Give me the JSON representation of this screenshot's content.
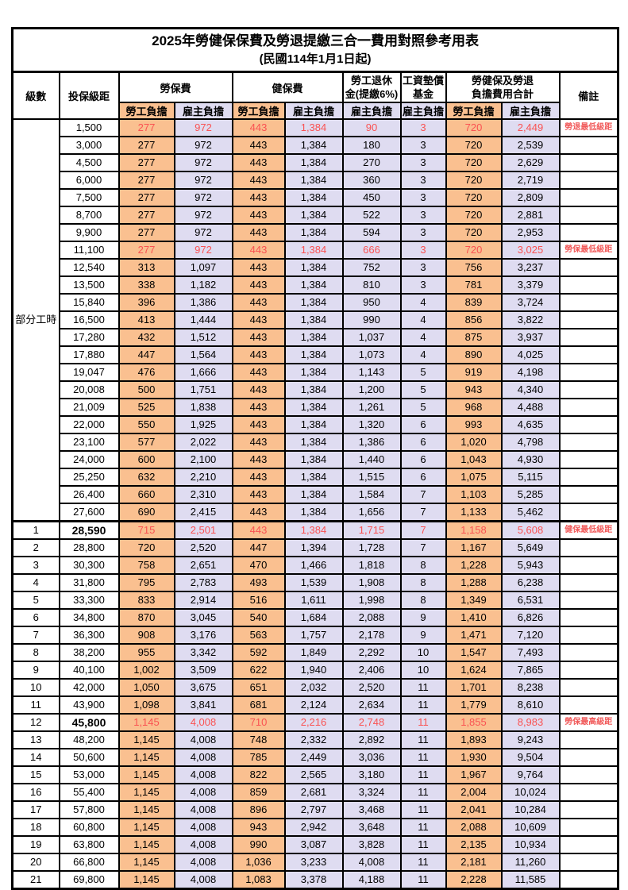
{
  "title": "2025年勞健保保費及勞退提繳三合一費用對照參考用表",
  "subtitle": "(民國114年1月1日起)",
  "header": {
    "level": "級數",
    "salary": "投保級距",
    "labor_ins": "勞保費",
    "health_ins": "健保費",
    "pension": "勞工退休\n金(提繳6%)",
    "wage_fund": "工資墊償\n基金",
    "total": "勞健保及勞退\n負擔費用合計",
    "note": "備註",
    "employee": "勞工負擔",
    "employer": "雇主負擔"
  },
  "colors": {
    "employee_bg": "#fac090",
    "employer_bg": "#dfdcf1",
    "highlight_text": "#fa5252",
    "note_text": "#f15b5b",
    "border": "#000000"
  },
  "part_time_label": "部分工時",
  "part_time_rowspan": 23,
  "rows": [
    {
      "level": "部分工時",
      "salary": "1,500",
      "cells": [
        "277",
        "972",
        "443",
        "1,384",
        "90",
        "3",
        "720",
        "2,449"
      ],
      "note": "勞退最低級距",
      "red": true,
      "bold": false,
      "section": false
    },
    {
      "level": null,
      "salary": "3,000",
      "cells": [
        "277",
        "972",
        "443",
        "1,384",
        "180",
        "3",
        "720",
        "2,539"
      ],
      "note": "",
      "red": false,
      "bold": false,
      "section": false
    },
    {
      "level": null,
      "salary": "4,500",
      "cells": [
        "277",
        "972",
        "443",
        "1,384",
        "270",
        "3",
        "720",
        "2,629"
      ],
      "note": "",
      "red": false,
      "bold": false,
      "section": false
    },
    {
      "level": null,
      "salary": "6,000",
      "cells": [
        "277",
        "972",
        "443",
        "1,384",
        "360",
        "3",
        "720",
        "2,719"
      ],
      "note": "",
      "red": false,
      "bold": false,
      "section": false
    },
    {
      "level": null,
      "salary": "7,500",
      "cells": [
        "277",
        "972",
        "443",
        "1,384",
        "450",
        "3",
        "720",
        "2,809"
      ],
      "note": "",
      "red": false,
      "bold": false,
      "section": false
    },
    {
      "level": null,
      "salary": "8,700",
      "cells": [
        "277",
        "972",
        "443",
        "1,384",
        "522",
        "3",
        "720",
        "2,881"
      ],
      "note": "",
      "red": false,
      "bold": false,
      "section": false
    },
    {
      "level": null,
      "salary": "9,900",
      "cells": [
        "277",
        "972",
        "443",
        "1,384",
        "594",
        "3",
        "720",
        "2,953"
      ],
      "note": "",
      "red": false,
      "bold": false,
      "section": false
    },
    {
      "level": null,
      "salary": "11,100",
      "cells": [
        "277",
        "972",
        "443",
        "1,384",
        "666",
        "3",
        "720",
        "3,025"
      ],
      "note": "勞保最低級距",
      "red": true,
      "bold": false,
      "section": false
    },
    {
      "level": null,
      "salary": "12,540",
      "cells": [
        "313",
        "1,097",
        "443",
        "1,384",
        "752",
        "3",
        "756",
        "3,237"
      ],
      "note": "",
      "red": false,
      "bold": false,
      "section": false
    },
    {
      "level": null,
      "salary": "13,500",
      "cells": [
        "338",
        "1,182",
        "443",
        "1,384",
        "810",
        "3",
        "781",
        "3,379"
      ],
      "note": "",
      "red": false,
      "bold": false,
      "section": false
    },
    {
      "level": null,
      "salary": "15,840",
      "cells": [
        "396",
        "1,386",
        "443",
        "1,384",
        "950",
        "4",
        "839",
        "3,724"
      ],
      "note": "",
      "red": false,
      "bold": false,
      "section": false
    },
    {
      "level": null,
      "salary": "16,500",
      "cells": [
        "413",
        "1,444",
        "443",
        "1,384",
        "990",
        "4",
        "856",
        "3,822"
      ],
      "note": "",
      "red": false,
      "bold": false,
      "section": false
    },
    {
      "level": null,
      "salary": "17,280",
      "cells": [
        "432",
        "1,512",
        "443",
        "1,384",
        "1,037",
        "4",
        "875",
        "3,937"
      ],
      "note": "",
      "red": false,
      "bold": false,
      "section": false
    },
    {
      "level": null,
      "salary": "17,880",
      "cells": [
        "447",
        "1,564",
        "443",
        "1,384",
        "1,073",
        "4",
        "890",
        "4,025"
      ],
      "note": "",
      "red": false,
      "bold": false,
      "section": false
    },
    {
      "level": null,
      "salary": "19,047",
      "cells": [
        "476",
        "1,666",
        "443",
        "1,384",
        "1,143",
        "5",
        "919",
        "4,198"
      ],
      "note": "",
      "red": false,
      "bold": false,
      "section": false
    },
    {
      "level": null,
      "salary": "20,008",
      "cells": [
        "500",
        "1,751",
        "443",
        "1,384",
        "1,200",
        "5",
        "943",
        "4,340"
      ],
      "note": "",
      "red": false,
      "bold": false,
      "section": false
    },
    {
      "level": null,
      "salary": "21,009",
      "cells": [
        "525",
        "1,838",
        "443",
        "1,384",
        "1,261",
        "5",
        "968",
        "4,488"
      ],
      "note": "",
      "red": false,
      "bold": false,
      "section": false
    },
    {
      "level": null,
      "salary": "22,000",
      "cells": [
        "550",
        "1,925",
        "443",
        "1,384",
        "1,320",
        "6",
        "993",
        "4,635"
      ],
      "note": "",
      "red": false,
      "bold": false,
      "section": false
    },
    {
      "level": null,
      "salary": "23,100",
      "cells": [
        "577",
        "2,022",
        "443",
        "1,384",
        "1,386",
        "6",
        "1,020",
        "4,798"
      ],
      "note": "",
      "red": false,
      "bold": false,
      "section": false
    },
    {
      "level": null,
      "salary": "24,000",
      "cells": [
        "600",
        "2,100",
        "443",
        "1,384",
        "1,440",
        "6",
        "1,043",
        "4,930"
      ],
      "note": "",
      "red": false,
      "bold": false,
      "section": false
    },
    {
      "level": null,
      "salary": "25,250",
      "cells": [
        "632",
        "2,210",
        "443",
        "1,384",
        "1,515",
        "6",
        "1,075",
        "5,115"
      ],
      "note": "",
      "red": false,
      "bold": false,
      "section": false
    },
    {
      "level": null,
      "salary": "26,400",
      "cells": [
        "660",
        "2,310",
        "443",
        "1,384",
        "1,584",
        "7",
        "1,103",
        "5,285"
      ],
      "note": "",
      "red": false,
      "bold": false,
      "section": false
    },
    {
      "level": null,
      "salary": "27,600",
      "cells": [
        "690",
        "2,415",
        "443",
        "1,384",
        "1,656",
        "7",
        "1,133",
        "5,462"
      ],
      "note": "",
      "red": false,
      "bold": false,
      "section": false
    },
    {
      "level": "1",
      "salary": "28,590",
      "cells": [
        "715",
        "2,501",
        "443",
        "1,384",
        "1,715",
        "7",
        "1,158",
        "5,608"
      ],
      "note": "健保最低級距",
      "red": true,
      "bold": true,
      "section": true
    },
    {
      "level": "2",
      "salary": "28,800",
      "cells": [
        "720",
        "2,520",
        "447",
        "1,394",
        "1,728",
        "7",
        "1,167",
        "5,649"
      ],
      "note": "",
      "red": false,
      "bold": false,
      "section": false
    },
    {
      "level": "3",
      "salary": "30,300",
      "cells": [
        "758",
        "2,651",
        "470",
        "1,466",
        "1,818",
        "8",
        "1,228",
        "5,943"
      ],
      "note": "",
      "red": false,
      "bold": false,
      "section": false
    },
    {
      "level": "4",
      "salary": "31,800",
      "cells": [
        "795",
        "2,783",
        "493",
        "1,539",
        "1,908",
        "8",
        "1,288",
        "6,238"
      ],
      "note": "",
      "red": false,
      "bold": false,
      "section": false
    },
    {
      "level": "5",
      "salary": "33,300",
      "cells": [
        "833",
        "2,914",
        "516",
        "1,611",
        "1,998",
        "8",
        "1,349",
        "6,531"
      ],
      "note": "",
      "red": false,
      "bold": false,
      "section": false
    },
    {
      "level": "6",
      "salary": "34,800",
      "cells": [
        "870",
        "3,045",
        "540",
        "1,684",
        "2,088",
        "9",
        "1,410",
        "6,826"
      ],
      "note": "",
      "red": false,
      "bold": false,
      "section": false
    },
    {
      "level": "7",
      "salary": "36,300",
      "cells": [
        "908",
        "3,176",
        "563",
        "1,757",
        "2,178",
        "9",
        "1,471",
        "7,120"
      ],
      "note": "",
      "red": false,
      "bold": false,
      "section": false
    },
    {
      "level": "8",
      "salary": "38,200",
      "cells": [
        "955",
        "3,342",
        "592",
        "1,849",
        "2,292",
        "10",
        "1,547",
        "7,493"
      ],
      "note": "",
      "red": false,
      "bold": false,
      "section": false
    },
    {
      "level": "9",
      "salary": "40,100",
      "cells": [
        "1,002",
        "3,509",
        "622",
        "1,940",
        "2,406",
        "10",
        "1,624",
        "7,865"
      ],
      "note": "",
      "red": false,
      "bold": false,
      "section": false
    },
    {
      "level": "10",
      "salary": "42,000",
      "cells": [
        "1,050",
        "3,675",
        "651",
        "2,032",
        "2,520",
        "11",
        "1,701",
        "8,238"
      ],
      "note": "",
      "red": false,
      "bold": false,
      "section": false
    },
    {
      "level": "11",
      "salary": "43,900",
      "cells": [
        "1,098",
        "3,841",
        "681",
        "2,124",
        "2,634",
        "11",
        "1,779",
        "8,610"
      ],
      "note": "",
      "red": false,
      "bold": false,
      "section": false
    },
    {
      "level": "12",
      "salary": "45,800",
      "cells": [
        "1,145",
        "4,008",
        "710",
        "2,216",
        "2,748",
        "11",
        "1,855",
        "8,983"
      ],
      "note": "勞保最高級距",
      "red": true,
      "bold": true,
      "section": false
    },
    {
      "level": "13",
      "salary": "48,200",
      "cells": [
        "1,145",
        "4,008",
        "748",
        "2,332",
        "2,892",
        "11",
        "1,893",
        "9,243"
      ],
      "note": "",
      "red": false,
      "bold": false,
      "section": false
    },
    {
      "level": "14",
      "salary": "50,600",
      "cells": [
        "1,145",
        "4,008",
        "785",
        "2,449",
        "3,036",
        "11",
        "1,930",
        "9,504"
      ],
      "note": "",
      "red": false,
      "bold": false,
      "section": false
    },
    {
      "level": "15",
      "salary": "53,000",
      "cells": [
        "1,145",
        "4,008",
        "822",
        "2,565",
        "3,180",
        "11",
        "1,967",
        "9,764"
      ],
      "note": "",
      "red": false,
      "bold": false,
      "section": false
    },
    {
      "level": "16",
      "salary": "55,400",
      "cells": [
        "1,145",
        "4,008",
        "859",
        "2,681",
        "3,324",
        "11",
        "2,004",
        "10,024"
      ],
      "note": "",
      "red": false,
      "bold": false,
      "section": false
    },
    {
      "level": "17",
      "salary": "57,800",
      "cells": [
        "1,145",
        "4,008",
        "896",
        "2,797",
        "3,468",
        "11",
        "2,041",
        "10,284"
      ],
      "note": "",
      "red": false,
      "bold": false,
      "section": false
    },
    {
      "level": "18",
      "salary": "60,800",
      "cells": [
        "1,145",
        "4,008",
        "943",
        "2,942",
        "3,648",
        "11",
        "2,088",
        "10,609"
      ],
      "note": "",
      "red": false,
      "bold": false,
      "section": false
    },
    {
      "level": "19",
      "salary": "63,800",
      "cells": [
        "1,145",
        "4,008",
        "990",
        "3,087",
        "3,828",
        "11",
        "2,135",
        "10,934"
      ],
      "note": "",
      "red": false,
      "bold": false,
      "section": false
    },
    {
      "level": "20",
      "salary": "66,800",
      "cells": [
        "1,145",
        "4,008",
        "1,036",
        "3,233",
        "4,008",
        "11",
        "2,181",
        "11,260"
      ],
      "note": "",
      "red": false,
      "bold": false,
      "section": false
    },
    {
      "level": "21",
      "salary": "69,800",
      "cells": [
        "1,145",
        "4,008",
        "1,083",
        "3,378",
        "4,188",
        "11",
        "2,228",
        "11,585"
      ],
      "note": "",
      "red": false,
      "bold": false,
      "section": false
    }
  ]
}
